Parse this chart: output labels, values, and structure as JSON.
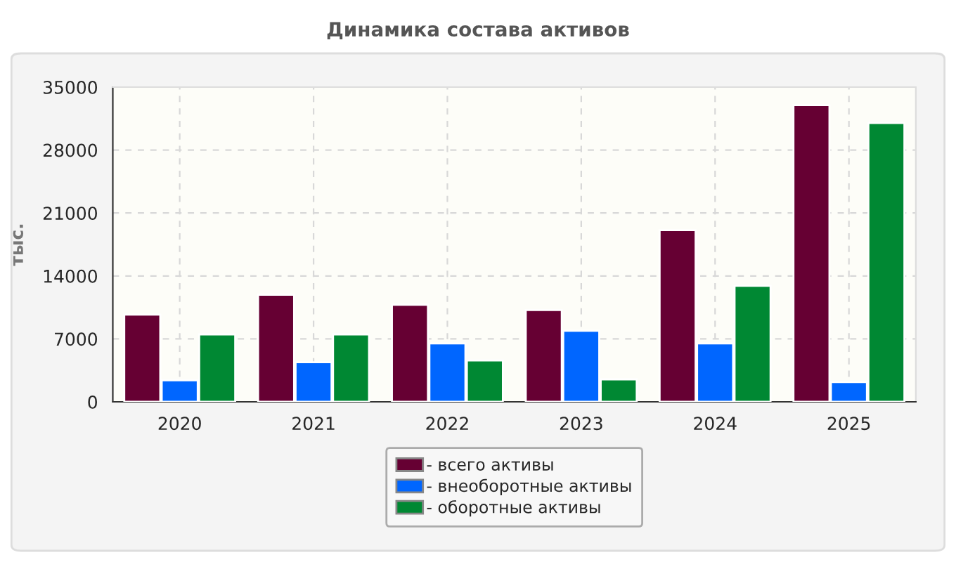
{
  "chart_data": {
    "type": "bar",
    "title": "Динамика состава активов",
    "ylabel": "тыс.",
    "categories": [
      "2020",
      "2021",
      "2022",
      "2023",
      "2024",
      "2025"
    ],
    "series": [
      {
        "name": "- всего активы",
        "color": "#660033",
        "values": [
          9700,
          11900,
          10800,
          10200,
          19100,
          33000
        ]
      },
      {
        "name": "- внеоборотные активы",
        "color": "#0066ff",
        "values": [
          2400,
          4400,
          6500,
          7900,
          6500,
          2200
        ]
      },
      {
        "name": "- оборотные активы",
        "color": "#008833",
        "values": [
          7500,
          7500,
          4600,
          2500,
          12900,
          31000
        ]
      }
    ],
    "ylim": [
      0,
      35000
    ],
    "yticks": [
      0,
      7000,
      14000,
      21000,
      28000,
      35000
    ],
    "grid": true,
    "legend": "bottom"
  }
}
